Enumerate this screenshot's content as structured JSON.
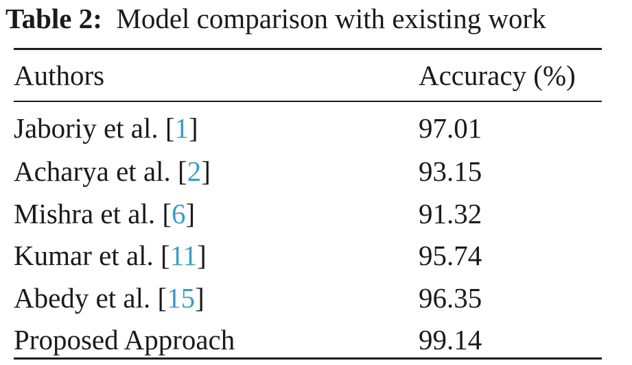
{
  "caption": {
    "label": "Table 2:",
    "text": "Model comparison with existing work"
  },
  "table": {
    "headers": [
      "Authors",
      "Accuracy (%)"
    ],
    "rows": [
      {
        "author": "Jaboriy et al.",
        "ref": "1",
        "accuracy": "97.01"
      },
      {
        "author": "Acharya et al.",
        "ref": "2",
        "accuracy": "93.15"
      },
      {
        "author": "Mishra et al.",
        "ref": "6",
        "accuracy": "91.32"
      },
      {
        "author": "Kumar et al.",
        "ref": "11",
        "accuracy": "95.74"
      },
      {
        "author": "Abedy et al.",
        "ref": "15",
        "accuracy": "96.35"
      },
      {
        "author": "Proposed Approach",
        "ref": "",
        "accuracy": "99.14"
      }
    ]
  },
  "colors": {
    "text": "#1a1a1a",
    "citation": "#3a9cc8"
  }
}
